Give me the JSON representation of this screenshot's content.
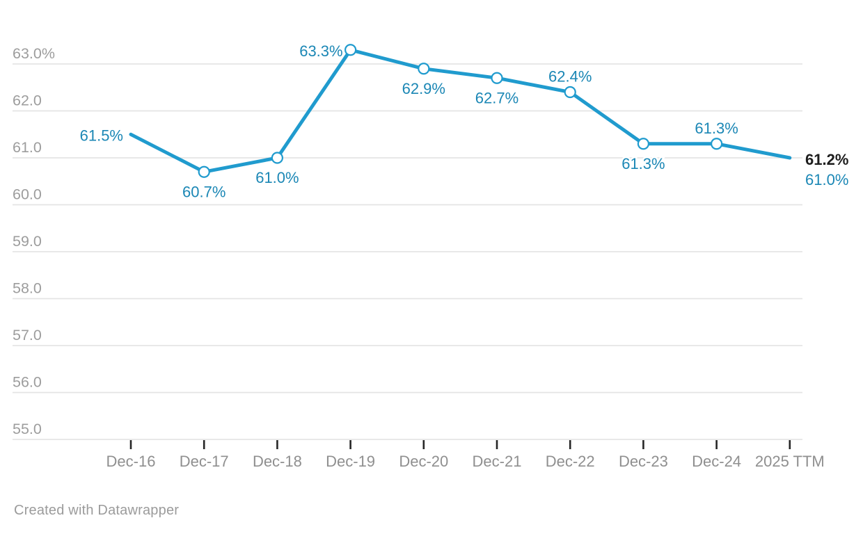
{
  "footer": {
    "credit": "Created with Datawrapper"
  },
  "colors": {
    "background": "#ffffff",
    "line": "#209bce",
    "value_label": "#1b87b5",
    "marker_fill": "#ffffff",
    "end_label_primary": "#1d1d1d",
    "end_label_secondary": "#1b87b5",
    "gridline": "#e4e4e4",
    "tick_mark": "#262626",
    "y_axis_label": "#9d9d9d",
    "x_axis_label": "#8f8f8f"
  },
  "chart_data": {
    "type": "line",
    "title": "",
    "xlabel": "",
    "ylabel": "",
    "categories": [
      "Dec-16",
      "Dec-17",
      "Dec-18",
      "Dec-19",
      "Dec-20",
      "Dec-21",
      "Dec-22",
      "Dec-23",
      "Dec-24",
      "2025 TTM"
    ],
    "series": [
      {
        "name": "percent",
        "values": [
          61.5,
          60.7,
          61.0,
          63.3,
          62.9,
          62.7,
          62.4,
          61.3,
          61.3,
          61.0
        ]
      }
    ],
    "point_labels": [
      "61.5%",
      "60.7%",
      "61.0%",
      "63.3%",
      "62.9%",
      "62.7%",
      "62.4%",
      "61.3%",
      "61.3%",
      ""
    ],
    "label_placements": [
      "left",
      "below",
      "below",
      "left",
      "below",
      "below",
      "above",
      "below",
      "above",
      "none"
    ],
    "markers": [
      false,
      true,
      true,
      true,
      true,
      true,
      true,
      true,
      true,
      false
    ],
    "end_labels": {
      "primary": "61.2%",
      "secondary": "61.0%"
    },
    "y_ticks": [
      {
        "value": 63,
        "label": "63.0%"
      },
      {
        "value": 62,
        "label": "62.0"
      },
      {
        "value": 61,
        "label": "61.0"
      },
      {
        "value": 60,
        "label": "60.0"
      },
      {
        "value": 59,
        "label": "59.0"
      },
      {
        "value": 58,
        "label": "58.0"
      },
      {
        "value": 57,
        "label": "57.0"
      },
      {
        "value": 56,
        "label": "56.0"
      },
      {
        "value": 55,
        "label": "55.0"
      }
    ],
    "ylim": [
      55,
      63.6
    ],
    "grid": "horizontal",
    "legend": "none",
    "x_tick_marks": true
  }
}
